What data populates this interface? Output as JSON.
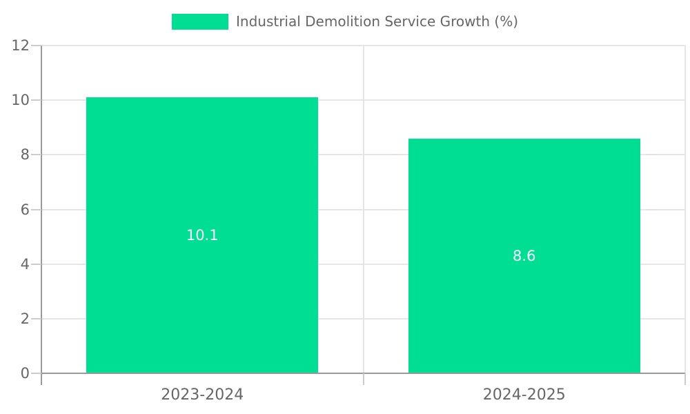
{
  "chart_data": {
    "type": "bar",
    "legend": {
      "label": "Industrial Demolition Service Growth (%)",
      "position": "top-center"
    },
    "categories": [
      "2023-2024",
      "2024-2025"
    ],
    "values": [
      10.1,
      8.6
    ],
    "bar_value_labels": [
      "10.1",
      "8.6"
    ],
    "title": "",
    "xlabel": "",
    "ylabel": "",
    "ylim": [
      0,
      12
    ],
    "yticks": [
      0,
      2,
      4,
      6,
      8,
      10,
      12
    ],
    "grid": "horizontal gridlines at each y tick, vertical gridlines at category boundaries",
    "bar_width_fraction": 0.72,
    "colors": {
      "bar": "#00DE94",
      "bar_value_text": "#ffffff",
      "grid": "#e5e5e5",
      "axis": "#999999",
      "tick": "#cccccc",
      "text": "#666666",
      "background": "#ffffff"
    }
  }
}
